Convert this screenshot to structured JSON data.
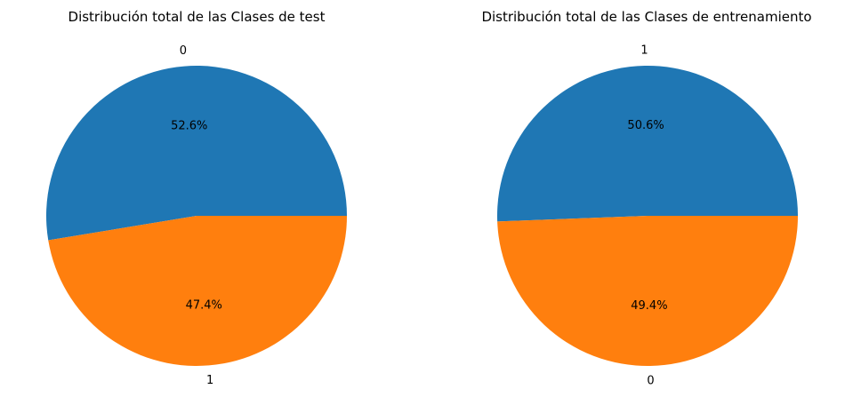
{
  "chart_data": [
    {
      "type": "pie",
      "title": "Distribución total de las Clases de test",
      "slices": [
        {
          "label": "0",
          "value": 52.6,
          "pct_label": "52.6%",
          "color": "#1f77b4"
        },
        {
          "label": "1",
          "value": 47.4,
          "pct_label": "47.4%",
          "color": "#ff7f0e"
        }
      ]
    },
    {
      "type": "pie",
      "title": "Distribución total de las Clases de entrenamiento",
      "slices": [
        {
          "label": "1",
          "value": 50.6,
          "pct_label": "50.6%",
          "color": "#1f77b4"
        },
        {
          "label": "0",
          "value": 49.4,
          "pct_label": "49.4%",
          "color": "#ff7f0e"
        }
      ]
    }
  ]
}
